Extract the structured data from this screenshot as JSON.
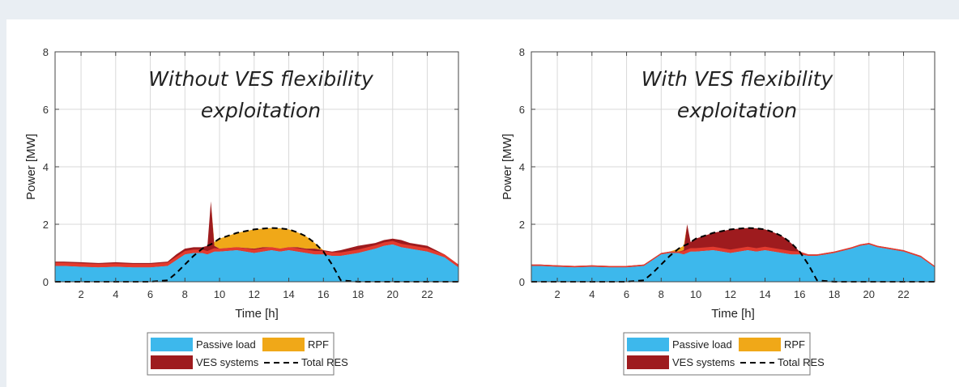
{
  "colors": {
    "passive": "#3db8ec",
    "ves": "#9e1b1e",
    "ves_edge": "#e23b2f",
    "rpf": "#f0a818",
    "res": "#000000",
    "grid": "#d9d9d9",
    "axis": "#444444"
  },
  "legend": {
    "passive": "Passive load",
    "rpf": "RPF",
    "ves": "VES systems",
    "res": "Total RES"
  },
  "chart_data": [
    {
      "type": "area",
      "annotation": [
        "Without VES flexibility",
        "exploitation"
      ],
      "xlabel": "Time [h]",
      "ylabel": "Power [MW]",
      "xlim": [
        0.5,
        23.8
      ],
      "ylim": [
        0,
        8
      ],
      "xticks": [
        2,
        4,
        6,
        8,
        10,
        12,
        14,
        16,
        18,
        20,
        22
      ],
      "yticks": [
        0,
        2,
        4,
        6,
        8
      ],
      "grid": true,
      "legend_position": "bottom-center",
      "x": [
        0.5,
        1,
        2,
        3,
        4,
        5,
        6,
        7,
        7.5,
        8,
        8.5,
        9,
        9.3,
        9.5,
        9.7,
        10,
        11,
        12,
        12.5,
        13,
        13.5,
        14,
        14.5,
        15,
        15.5,
        16,
        16.5,
        17,
        18,
        19,
        19.5,
        20,
        20.5,
        21,
        22,
        23,
        23.8
      ],
      "series": [
        {
          "name": "Passive load",
          "values": [
            0.55,
            0.55,
            0.52,
            0.5,
            0.52,
            0.5,
            0.5,
            0.55,
            0.75,
            0.95,
            1.0,
            1.0,
            0.95,
            1.0,
            1.05,
            1.05,
            1.1,
            1.0,
            1.05,
            1.1,
            1.05,
            1.1,
            1.05,
            1.0,
            0.95,
            0.95,
            0.9,
            0.9,
            1.0,
            1.15,
            1.25,
            1.3,
            1.2,
            1.15,
            1.05,
            0.85,
            0.5
          ]
        },
        {
          "name": "VES systems",
          "values": [
            0.7,
            0.7,
            0.68,
            0.65,
            0.68,
            0.65,
            0.65,
            0.7,
            0.95,
            1.15,
            1.2,
            1.2,
            1.25,
            2.8,
            1.25,
            1.15,
            1.2,
            1.15,
            1.2,
            1.2,
            1.15,
            1.2,
            1.2,
            1.15,
            1.15,
            1.1,
            1.05,
            1.1,
            1.25,
            1.35,
            1.45,
            1.5,
            1.45,
            1.35,
            1.25,
            0.95,
            0.6
          ]
        },
        {
          "name": "Total RES",
          "values": [
            0,
            0,
            0,
            0,
            0,
            0,
            0,
            0.05,
            0.3,
            0.6,
            0.9,
            1.15,
            1.25,
            1.3,
            1.38,
            1.5,
            1.7,
            1.82,
            1.85,
            1.87,
            1.86,
            1.82,
            1.72,
            1.58,
            1.35,
            1.05,
            0.6,
            0.05,
            0,
            0,
            0,
            0,
            0,
            0,
            0,
            0,
            0
          ]
        }
      ]
    },
    {
      "type": "area",
      "annotation": [
        "With VES flexibility",
        "exploitation"
      ],
      "xlabel": "Time [h]",
      "ylabel": "Power [MW]",
      "xlim": [
        0.5,
        23.8
      ],
      "ylim": [
        0,
        8
      ],
      "xticks": [
        2,
        4,
        6,
        8,
        10,
        12,
        14,
        16,
        18,
        20,
        22
      ],
      "yticks": [
        0,
        2,
        4,
        6,
        8
      ],
      "grid": true,
      "legend_position": "bottom-center",
      "x": [
        0.5,
        1,
        2,
        3,
        4,
        5,
        6,
        7,
        7.5,
        8,
        8.5,
        9,
        9.3,
        9.5,
        9.7,
        10,
        11,
        12,
        12.5,
        13,
        13.5,
        14,
        14.5,
        15,
        15.5,
        16,
        16.5,
        17,
        18,
        19,
        19.5,
        20,
        20.5,
        21,
        22,
        23,
        23.8
      ],
      "series": [
        {
          "name": "Passive load",
          "values": [
            0.55,
            0.55,
            0.52,
            0.5,
            0.52,
            0.5,
            0.5,
            0.55,
            0.75,
            0.95,
            1.0,
            1.0,
            0.95,
            1.0,
            1.05,
            1.05,
            1.1,
            1.0,
            1.05,
            1.1,
            1.05,
            1.1,
            1.05,
            1.0,
            0.95,
            0.95,
            0.9,
            0.9,
            1.0,
            1.15,
            1.25,
            1.3,
            1.2,
            1.15,
            1.05,
            0.85,
            0.5
          ]
        },
        {
          "name": "VES systems",
          "values": [
            0.6,
            0.6,
            0.57,
            0.55,
            0.57,
            0.55,
            0.55,
            0.6,
            0.8,
            1.0,
            1.05,
            1.05,
            1.1,
            2.0,
            1.38,
            1.5,
            1.7,
            1.82,
            1.85,
            1.87,
            1.86,
            1.82,
            1.72,
            1.58,
            1.35,
            1.05,
            0.95,
            0.95,
            1.05,
            1.2,
            1.3,
            1.35,
            1.25,
            1.2,
            1.1,
            0.9,
            0.55
          ]
        },
        {
          "name": "Total RES",
          "values": [
            0,
            0,
            0,
            0,
            0,
            0,
            0,
            0.05,
            0.3,
            0.6,
            0.9,
            1.15,
            1.25,
            1.3,
            1.38,
            1.5,
            1.7,
            1.82,
            1.85,
            1.87,
            1.86,
            1.82,
            1.72,
            1.58,
            1.35,
            1.05,
            0.6,
            0.05,
            0,
            0,
            0,
            0,
            0,
            0,
            0,
            0,
            0
          ]
        }
      ]
    }
  ]
}
